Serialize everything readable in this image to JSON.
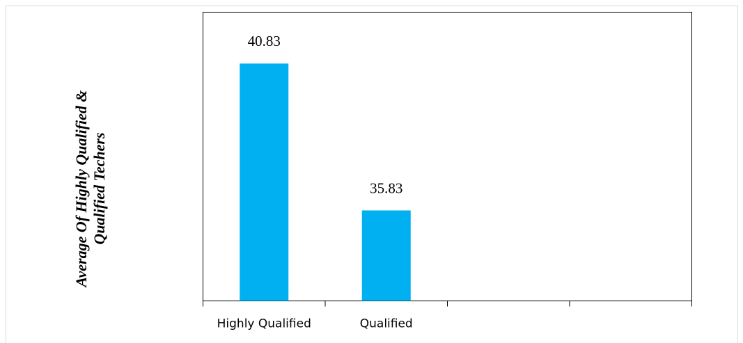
{
  "chart_data": {
    "type": "bar",
    "y_label": "Average Of Highly Qualified & Qualified Techers",
    "categories": [
      "Highly Qualified",
      "Qualified",
      null,
      null
    ],
    "values": [
      40.83,
      35.83,
      null,
      null
    ],
    "color": "#00b0f0",
    "ylim": [
      32.75,
      42.58
    ]
  }
}
